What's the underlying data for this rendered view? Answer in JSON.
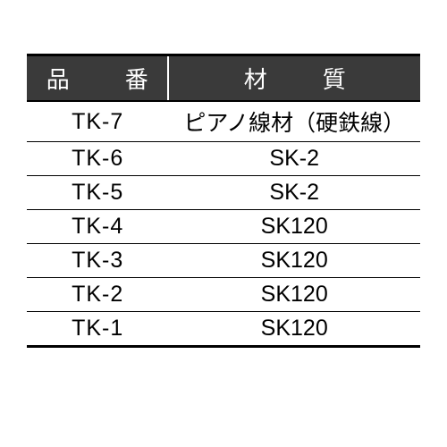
{
  "table": {
    "type": "table",
    "background_color": "#ffffff",
    "header_bg": "#3a3a3a",
    "header_text_color": "#ffffff",
    "border_color": "#000000",
    "font_size_header": 26,
    "font_size_cell": 25,
    "columns": [
      {
        "label": "品　番",
        "width_pct": 36
      },
      {
        "label": "材　質",
        "width_pct": 64
      }
    ],
    "rows": [
      {
        "code": "TK-7",
        "material": "ピアノ線材（硬鉄線）"
      },
      {
        "code": "TK-6",
        "material": "SK-2"
      },
      {
        "code": "TK-5",
        "material": "SK-2"
      },
      {
        "code": "TK-4",
        "material": "SK120"
      },
      {
        "code": "TK-3",
        "material": "SK120"
      },
      {
        "code": "TK-2",
        "material": "SK120"
      },
      {
        "code": "TK-1",
        "material": "SK120"
      }
    ]
  }
}
